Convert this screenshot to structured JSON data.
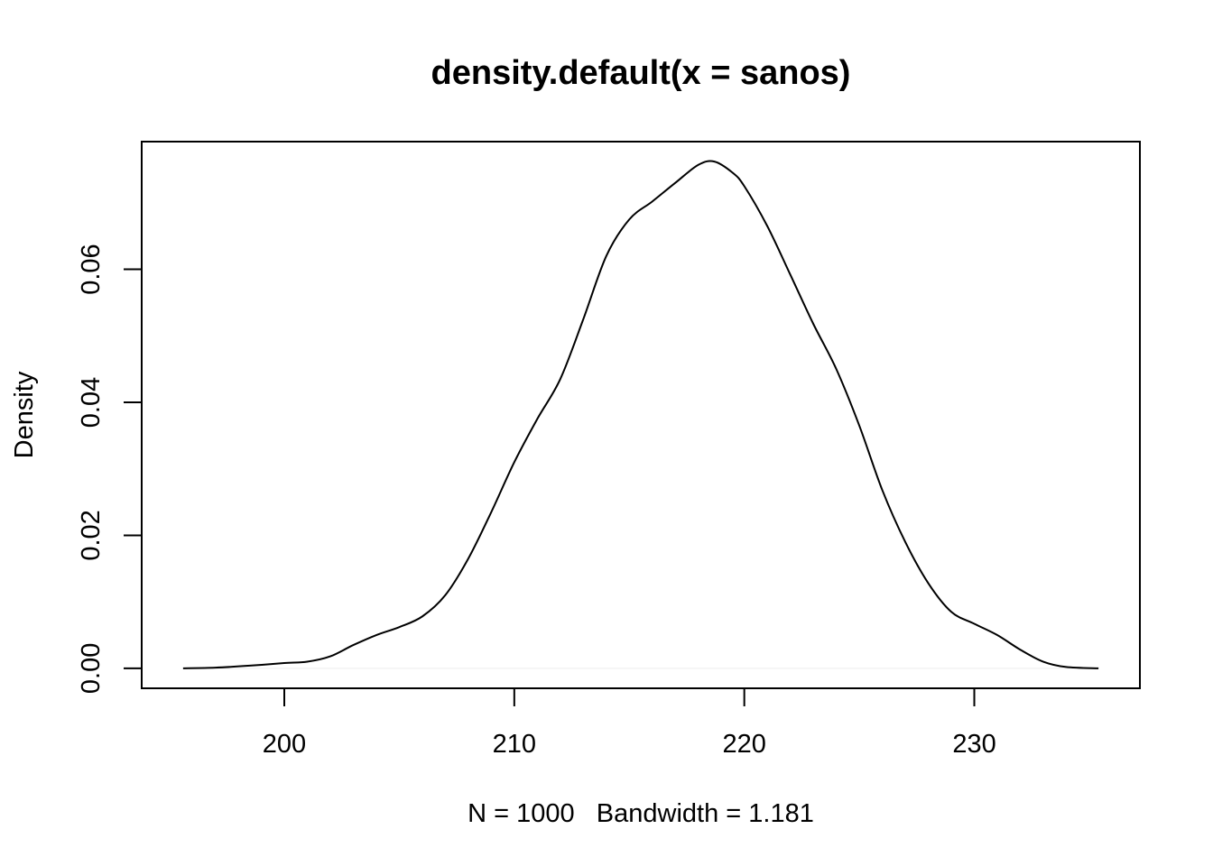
{
  "chart_data": {
    "type": "line",
    "title": "density.default(x = sanos)",
    "xlabel": "N = 1000   Bandwidth = 1.181",
    "ylabel": "Density",
    "xlim": [
      193.8,
      237.2
    ],
    "ylim": [
      -0.003,
      0.0792
    ],
    "x_ticks": [
      200,
      210,
      220,
      230
    ],
    "x_tick_labels": [
      "200",
      "210",
      "220",
      "230"
    ],
    "y_ticks": [
      0.0,
      0.02,
      0.04,
      0.06
    ],
    "y_tick_labels": [
      "0.00",
      "0.02",
      "0.04",
      "0.06"
    ],
    "grid": false,
    "legend": "none",
    "series": [
      {
        "x": [
          195.6,
          197,
          198.5,
          200,
          201,
          202,
          203,
          204,
          205,
          206,
          207,
          208,
          209,
          210,
          211,
          212,
          213,
          214,
          215,
          216,
          217,
          218,
          218.7,
          219.5,
          220,
          221,
          222,
          223,
          224,
          225,
          226,
          227,
          228,
          229,
          230,
          231,
          232,
          233,
          234,
          235.4
        ],
        "y": [
          0.0,
          0.0001,
          0.0004,
          0.0008,
          0.001,
          0.0018,
          0.0035,
          0.005,
          0.0062,
          0.0078,
          0.011,
          0.0165,
          0.0235,
          0.031,
          0.0375,
          0.0435,
          0.0525,
          0.062,
          0.0675,
          0.0702,
          0.073,
          0.0757,
          0.0762,
          0.0745,
          0.0725,
          0.0665,
          0.0592,
          0.0518,
          0.045,
          0.0365,
          0.0268,
          0.019,
          0.0128,
          0.0085,
          0.0067,
          0.005,
          0.0028,
          0.001,
          0.0002,
          0.0
        ]
      }
    ]
  }
}
